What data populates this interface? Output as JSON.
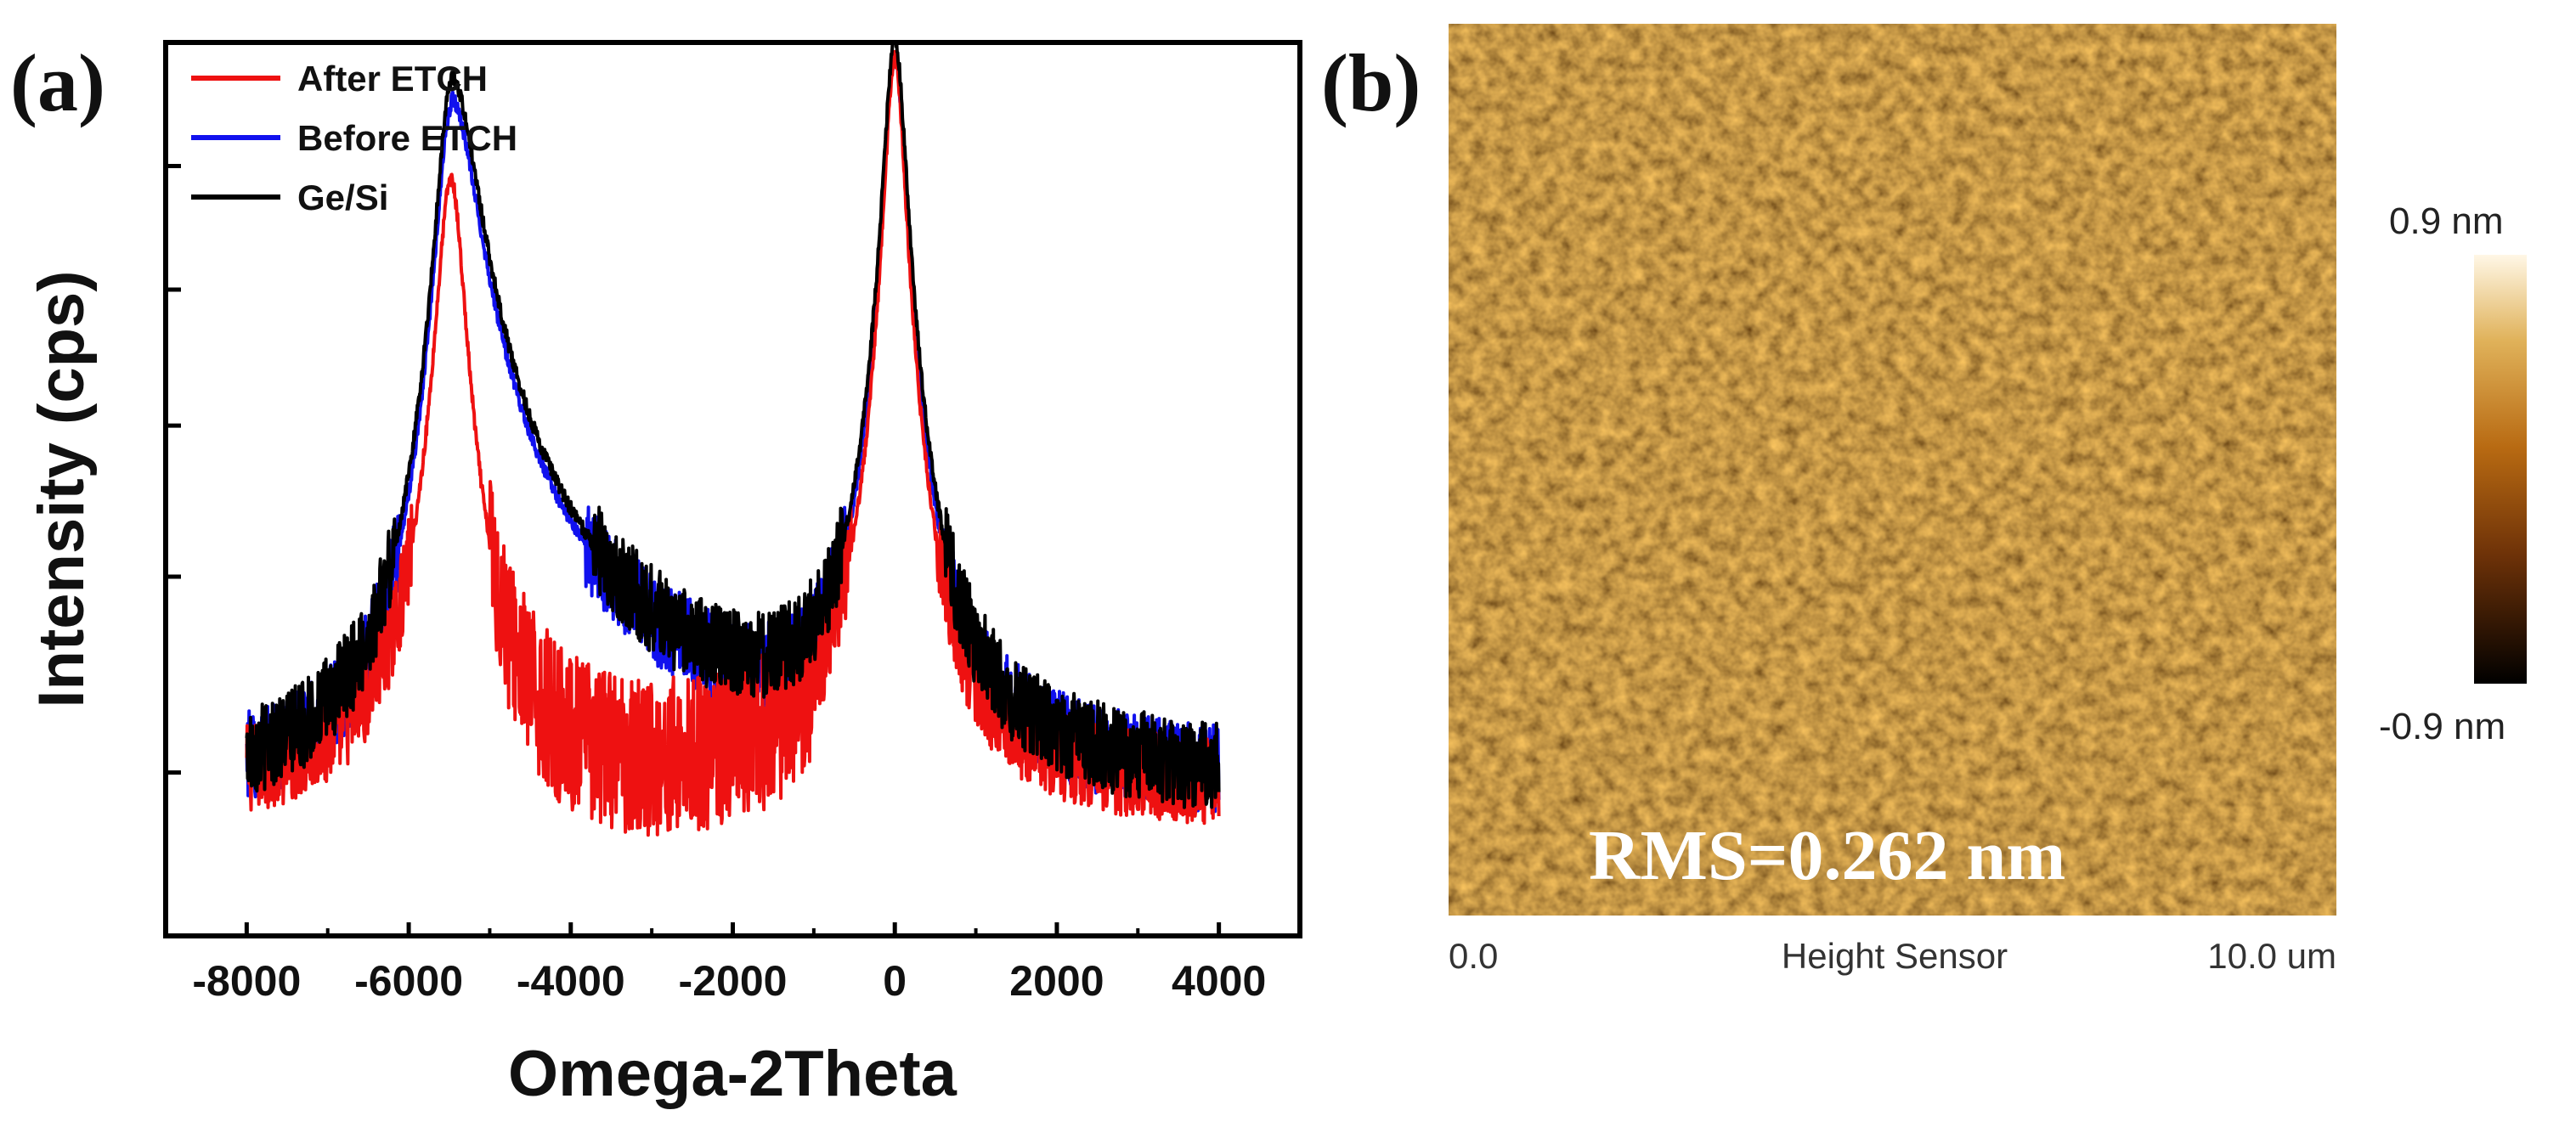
{
  "chart_data": [
    {
      "panel": "(a)",
      "type": "line",
      "xlabel": "Omega-2Theta",
      "ylabel": "Intensity (cps)",
      "xlim": [
        -9000,
        5000
      ],
      "x_ticks": [
        -8000,
        -6000,
        -4000,
        -2000,
        0,
        2000,
        4000
      ],
      "y_scale": "log",
      "ylim": [
        0.4,
        60
      ],
      "y_ticks_unlabeled": [
        1,
        3,
        7,
        15,
        30
      ],
      "x_range": [
        -8000,
        4000
      ],
      "series": [
        {
          "name": "After ETCH",
          "color": "#ee1111",
          "peak1": {
            "x": -5480,
            "y": 27
          },
          "peak2": {
            "x": 0,
            "y": 54
          },
          "baseline": 0.9
        },
        {
          "name": "Before ETCH",
          "color": "#1111ee",
          "peak1": {
            "x": -5480,
            "y": 40
          },
          "peak2": {
            "x": 0,
            "y": 54
          },
          "baseline": 0.9
        },
        {
          "name": "Ge/Si",
          "color": "#000000",
          "peak1": {
            "x": -5480,
            "y": 46
          },
          "peak2": {
            "x": 0,
            "y": 60
          },
          "baseline": 0.9
        }
      ],
      "legend_position": "top-left"
    },
    {
      "panel": "(b)",
      "type": "heatmap",
      "annotation": "RMS=0.262 nm",
      "x_axis_start": "0.0",
      "x_axis_label": "Height Sensor",
      "x_axis_end": "10.0 um",
      "colorbar_max": "0.9 nm",
      "colorbar_min": "-0.9 nm"
    }
  ]
}
